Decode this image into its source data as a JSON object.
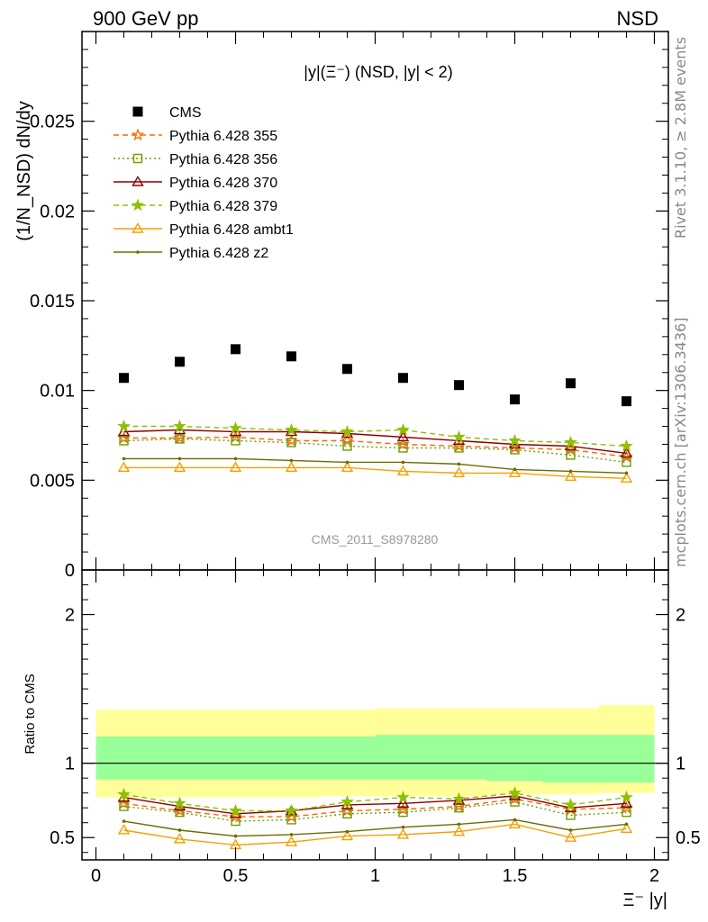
{
  "header": {
    "left": "900 GeV pp",
    "right": "NSD"
  },
  "side_text": {
    "rivet": "Rivet 3.1.10, ≥ 2.8M events",
    "mcplots": "mcplots.cern.ch [arXiv:1306.3436]"
  },
  "chart_data": [
    {
      "type": "scatter",
      "title": "|y|(Ξ⁻) (NSD, |y| < 2)",
      "ylabel": "(1/N_NSD) dN/dy",
      "watermark": "CMS_2011_S8978280",
      "xlim": [
        -0.05,
        2.05
      ],
      "ylim": [
        0,
        0.03
      ],
      "yticks": [
        0,
        0.005,
        0.01,
        0.015,
        0.02,
        0.025
      ],
      "ytick_labels": [
        "0",
        "0.005",
        "0.01",
        "0.015",
        "0.02",
        "0.025"
      ],
      "legend_position": "upper-left",
      "x": [
        0.1,
        0.3,
        0.5,
        0.7,
        0.9,
        1.1,
        1.3,
        1.5,
        1.7,
        1.9
      ],
      "series": [
        {
          "name": "CMS",
          "color": "#000000",
          "marker": "square",
          "line": "none",
          "values": [
            0.0107,
            0.0116,
            0.0123,
            0.0119,
            0.0112,
            0.0107,
            0.0103,
            0.0095,
            0.0104,
            0.0094
          ]
        },
        {
          "name": "Pythia 6.428 355",
          "color": "#ff6600",
          "marker": "star-open",
          "line": "dashed",
          "values": [
            0.00735,
            0.00735,
            0.0074,
            0.0072,
            0.0072,
            0.007,
            0.0069,
            0.0068,
            0.0067,
            0.0063
          ]
        },
        {
          "name": "Pythia 6.428 356",
          "color": "#6b9e00",
          "marker": "square-open",
          "line": "dotted",
          "values": [
            0.0072,
            0.0073,
            0.0072,
            0.0071,
            0.0069,
            0.0068,
            0.0068,
            0.0067,
            0.0064,
            0.006
          ]
        },
        {
          "name": "Pythia 6.428 370",
          "color": "#8b0000",
          "marker": "triangle-open",
          "line": "solid",
          "values": [
            0.0077,
            0.0078,
            0.0077,
            0.0077,
            0.0076,
            0.0074,
            0.0072,
            0.007,
            0.0069,
            0.0065
          ]
        },
        {
          "name": "Pythia 6.428 379",
          "color": "#8fbf00",
          "marker": "star",
          "line": "dashed",
          "values": [
            0.008,
            0.008,
            0.0079,
            0.0078,
            0.0077,
            0.0078,
            0.0074,
            0.0072,
            0.0071,
            0.0069
          ]
        },
        {
          "name": "Pythia 6.428 ambt1",
          "color": "#f5a000",
          "marker": "triangle-open",
          "line": "solid",
          "values": [
            0.0057,
            0.0057,
            0.0057,
            0.0057,
            0.0057,
            0.0055,
            0.0054,
            0.0054,
            0.0052,
            0.0051
          ]
        },
        {
          "name": "Pythia 6.428 z2",
          "color": "#6b6b00",
          "marker": "dot",
          "line": "solid",
          "values": [
            0.0062,
            0.0062,
            0.0062,
            0.0061,
            0.006,
            0.006,
            0.0059,
            0.0056,
            0.0055,
            0.0054
          ]
        }
      ]
    },
    {
      "type": "line",
      "ylabel": "Ratio to CMS",
      "xlabel": "Ξ⁻ |y|",
      "xlim": [
        -0.05,
        2.05
      ],
      "ylim": [
        0.35,
        2.3
      ],
      "xticks": [
        0,
        0.5,
        1,
        1.5,
        2
      ],
      "xtick_labels": [
        "0",
        "0.5",
        "1",
        "1.5",
        "2"
      ],
      "yticks": [
        0.5,
        1,
        2
      ],
      "ytick_labels": [
        "0.5",
        "1",
        "2"
      ],
      "reference_line": 1,
      "bands": {
        "x_edges": [
          0.0,
          0.2,
          0.4,
          0.6,
          0.8,
          1.0,
          1.2,
          1.4,
          1.6,
          1.8,
          2.0
        ],
        "outer_upper": [
          1.36,
          1.36,
          1.36,
          1.36,
          1.36,
          1.37,
          1.37,
          1.37,
          1.37,
          1.39
        ],
        "outer_lower": [
          0.77,
          0.77,
          0.77,
          0.77,
          0.78,
          0.78,
          0.78,
          0.79,
          0.79,
          0.8
        ],
        "inner_upper": [
          1.18,
          1.18,
          1.18,
          1.18,
          1.18,
          1.19,
          1.19,
          1.19,
          1.19,
          1.19
        ],
        "inner_lower": [
          0.89,
          0.89,
          0.89,
          0.89,
          0.89,
          0.89,
          0.89,
          0.88,
          0.87,
          0.87
        ],
        "outer_color": "#ffff99",
        "inner_color": "#99ff99"
      },
      "x": [
        0.1,
        0.3,
        0.5,
        0.7,
        0.9,
        1.1,
        1.3,
        1.5,
        1.7,
        1.9
      ],
      "series": [
        {
          "name": "Pythia 6.428 355",
          "color": "#ff6600",
          "marker": "star-open",
          "line": "dashed",
          "values": [
            0.73,
            0.68,
            0.64,
            0.64,
            0.68,
            0.69,
            0.71,
            0.76,
            0.69,
            0.7
          ]
        },
        {
          "name": "Pythia 6.428 356",
          "color": "#6b9e00",
          "marker": "square-open",
          "line": "dotted",
          "values": [
            0.71,
            0.67,
            0.61,
            0.62,
            0.66,
            0.67,
            0.7,
            0.74,
            0.65,
            0.67
          ]
        },
        {
          "name": "Pythia 6.428 370",
          "color": "#8b0000",
          "marker": "triangle-open",
          "line": "solid",
          "values": [
            0.77,
            0.71,
            0.66,
            0.68,
            0.72,
            0.73,
            0.75,
            0.78,
            0.7,
            0.73
          ]
        },
        {
          "name": "Pythia 6.428 379",
          "color": "#8fbf00",
          "marker": "star",
          "line": "dashed",
          "values": [
            0.79,
            0.73,
            0.68,
            0.68,
            0.74,
            0.77,
            0.76,
            0.8,
            0.72,
            0.77
          ]
        },
        {
          "name": "Pythia 6.428 ambt1",
          "color": "#f5a000",
          "marker": "triangle-open",
          "line": "solid",
          "values": [
            0.55,
            0.49,
            0.45,
            0.47,
            0.51,
            0.52,
            0.54,
            0.59,
            0.5,
            0.56
          ]
        },
        {
          "name": "Pythia 6.428 z2",
          "color": "#6b6b00",
          "marker": "dot",
          "line": "solid",
          "values": [
            0.61,
            0.55,
            0.51,
            0.52,
            0.54,
            0.57,
            0.59,
            0.62,
            0.55,
            0.59
          ]
        }
      ]
    }
  ]
}
